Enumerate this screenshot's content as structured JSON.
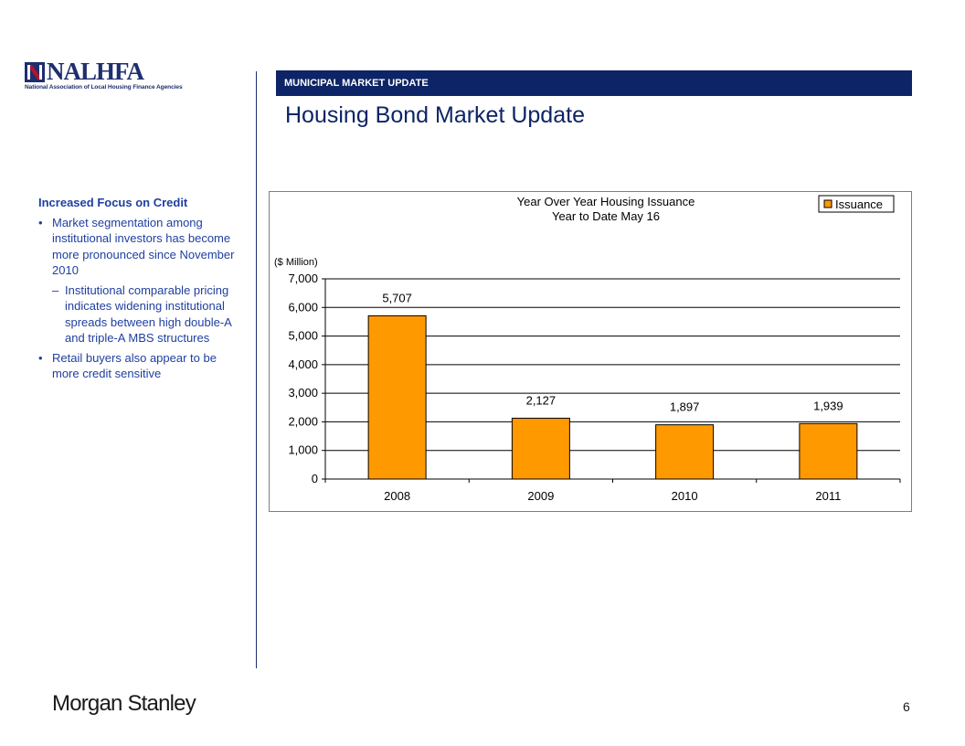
{
  "logo": {
    "name": "NALHFA",
    "tagline": "National Association of Local Housing Finance Agencies",
    "colors": {
      "navy": "#1f2e6e",
      "red": "#b5132b"
    }
  },
  "header": {
    "section_label": "MUNICIPAL MARKET UPDATE",
    "title": "Housing Bond Market Update",
    "bar_color": "#0d2566"
  },
  "sidebar": {
    "heading": "Increased Focus on Credit",
    "bullets": [
      "Market segmentation among institutional investors has become more pronounced since November 2010",
      "Retail buyers also appear to be more credit sensitive"
    ],
    "sub_bullets": [
      "Institutional comparable pricing indicates widening institutional spreads between high double-A and triple-A MBS structures"
    ],
    "bullet_glyph": "•",
    "sub_glyph": "–"
  },
  "chart_data": {
    "type": "bar",
    "title": "Year Over Year Housing Issuance",
    "subtitle": "Year to Date May 16",
    "ylabel": "($ Million)",
    "categories": [
      "2008",
      "2009",
      "2010",
      "2011"
    ],
    "series": [
      {
        "name": "Issuance",
        "values": [
          5707,
          2127,
          1897,
          1939
        ],
        "color": "#ff9900"
      }
    ],
    "data_labels": [
      "5,707",
      "2,127",
      "1,897",
      "1,939"
    ],
    "ylim": [
      0,
      7000
    ],
    "yticks": [
      0,
      1000,
      2000,
      3000,
      4000,
      5000,
      6000,
      7000
    ],
    "ytick_labels": [
      "0",
      "1,000",
      "2,000",
      "3,000",
      "4,000",
      "5,000",
      "6,000",
      "7,000"
    ],
    "grid": true,
    "legend": "top-right"
  },
  "footer": {
    "brand": "Morgan Stanley",
    "page_number": "6"
  }
}
